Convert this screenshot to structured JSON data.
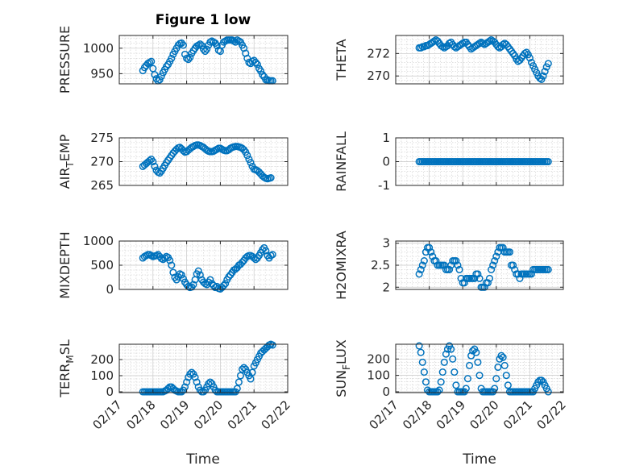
{
  "title": "Figure 1 low",
  "colors": {
    "marker": "#0072BD",
    "axis": "#262626",
    "grid": "#c8c8c8"
  },
  "x_tick_labels": [
    "02/17",
    "02/18",
    "02/19",
    "02/20",
    "02/21",
    "02/22"
  ],
  "x_label": "Time",
  "chart_data": [
    {
      "type": "scatter",
      "id": "pressure",
      "ylabel": "PRESSURE",
      "ylim": [
        930,
        1025
      ],
      "yticks": [
        950,
        1000
      ],
      "grid": true,
      "x": [
        17.7,
        17.75,
        17.8,
        17.85,
        17.9,
        17.95,
        18.0,
        18.05,
        18.1,
        18.15,
        18.2,
        18.25,
        18.3,
        18.35,
        18.4,
        18.45,
        18.5,
        18.55,
        18.6,
        18.65,
        18.7,
        18.75,
        18.8,
        18.85,
        18.9,
        18.95,
        19.0,
        19.05,
        19.1,
        19.15,
        19.2,
        19.25,
        19.3,
        19.35,
        19.4,
        19.45,
        19.5,
        19.55,
        19.6,
        19.65,
        19.7,
        19.75,
        19.8,
        19.85,
        19.9,
        19.95,
        20.0,
        20.05,
        20.1,
        20.15,
        20.2,
        20.25,
        20.3,
        20.35,
        20.4,
        20.45,
        20.5,
        20.55,
        20.6,
        20.65,
        20.7,
        20.75,
        20.8,
        20.85,
        20.9,
        20.95,
        21.0,
        21.05,
        21.1,
        21.15,
        21.2,
        21.25,
        21.3,
        21.35,
        21.4,
        21.45,
        21.5,
        21.55
      ],
      "y": [
        956,
        962,
        966,
        970,
        972,
        974,
        960,
        948,
        940,
        936,
        938,
        945,
        952,
        958,
        964,
        968,
        974,
        980,
        988,
        994,
        1000,
        1006,
        1009,
        1010,
        1006,
        988,
        980,
        978,
        982,
        990,
        995,
        1000,
        1004,
        1006,
        1008,
        1005,
        998,
        994,
        998,
        1006,
        1012,
        1014,
        1012,
        1010,
        1005,
        996,
        994,
        1006,
        1012,
        1014,
        1016,
        1016,
        1016,
        1016,
        1014,
        1012,
        1016,
        1014,
        1012,
        1006,
        1000,
        990,
        980,
        972,
        970,
        974,
        976,
        972,
        968,
        960,
        955,
        948,
        944,
        938,
        938,
        936,
        936,
        936
      ]
    },
    {
      "type": "scatter",
      "id": "theta",
      "ylabel": "THETA",
      "ylim": [
        269.3,
        273.6
      ],
      "yticks": [
        270,
        272
      ],
      "grid": true,
      "x": [
        17.7,
        17.75,
        17.8,
        17.85,
        17.9,
        17.95,
        18.0,
        18.05,
        18.1,
        18.15,
        18.2,
        18.25,
        18.3,
        18.35,
        18.4,
        18.45,
        18.5,
        18.55,
        18.6,
        18.65,
        18.7,
        18.75,
        18.8,
        18.85,
        18.9,
        18.95,
        19.0,
        19.05,
        19.1,
        19.15,
        19.2,
        19.25,
        19.3,
        19.35,
        19.4,
        19.45,
        19.5,
        19.55,
        19.6,
        19.65,
        19.7,
        19.75,
        19.8,
        19.85,
        19.9,
        19.95,
        20.0,
        20.05,
        20.1,
        20.15,
        20.2,
        20.25,
        20.3,
        20.35,
        20.4,
        20.45,
        20.5,
        20.55,
        20.6,
        20.65,
        20.7,
        20.75,
        20.8,
        20.85,
        20.9,
        20.95,
        21.0,
        21.05,
        21.1,
        21.15,
        21.2,
        21.25,
        21.3,
        21.35,
        21.4,
        21.45,
        21.5,
        21.55
      ],
      "y": [
        272.5,
        272.5,
        272.6,
        272.6,
        272.7,
        272.7,
        272.8,
        272.9,
        273.0,
        273.1,
        273.2,
        273.1,
        272.9,
        272.7,
        272.6,
        272.5,
        272.6,
        272.7,
        272.9,
        273.0,
        272.8,
        272.6,
        272.5,
        272.6,
        272.7,
        272.8,
        272.9,
        273.0,
        273.0,
        272.8,
        272.6,
        272.4,
        272.5,
        272.6,
        272.7,
        272.8,
        272.9,
        273.0,
        272.9,
        272.8,
        272.9,
        273.0,
        273.1,
        273.2,
        273.1,
        273.0,
        272.8,
        272.6,
        272.5,
        272.6,
        272.8,
        272.9,
        272.8,
        272.6,
        272.4,
        272.2,
        272.0,
        271.8,
        271.5,
        271.3,
        271.4,
        271.6,
        271.8,
        272.0,
        272.1,
        271.9,
        271.6,
        271.2,
        270.9,
        270.6,
        270.3,
        270.0,
        269.8,
        269.7,
        270.0,
        270.4,
        270.8,
        271.1
      ]
    },
    {
      "type": "scatter",
      "id": "air_temp",
      "ylabel_main": "AIR",
      "ylabel_sub": "T",
      "ylabel_rest": "EMP",
      "ylim": [
        265,
        275
      ],
      "yticks": [
        265,
        270,
        275
      ],
      "grid": true,
      "x": [
        17.7,
        17.75,
        17.8,
        17.85,
        17.9,
        17.95,
        18.0,
        18.05,
        18.1,
        18.15,
        18.2,
        18.25,
        18.3,
        18.35,
        18.4,
        18.45,
        18.5,
        18.55,
        18.6,
        18.65,
        18.7,
        18.75,
        18.8,
        18.85,
        18.9,
        18.95,
        19.0,
        19.05,
        19.1,
        19.15,
        19.2,
        19.25,
        19.3,
        19.35,
        19.4,
        19.45,
        19.5,
        19.55,
        19.6,
        19.65,
        19.7,
        19.75,
        19.8,
        19.85,
        19.9,
        19.95,
        20.0,
        20.05,
        20.1,
        20.15,
        20.2,
        20.25,
        20.3,
        20.35,
        20.4,
        20.45,
        20.5,
        20.55,
        20.6,
        20.65,
        20.7,
        20.75,
        20.8,
        20.85,
        20.9,
        20.95,
        21.0,
        21.05,
        21.1,
        21.15,
        21.2,
        21.25,
        21.3,
        21.35,
        21.4,
        21.45,
        21.5
      ],
      "y": [
        269.0,
        269.3,
        269.6,
        269.9,
        270.2,
        270.5,
        270.0,
        269.0,
        268.2,
        267.8,
        267.6,
        268.0,
        268.6,
        269.2,
        269.8,
        270.3,
        270.8,
        271.3,
        271.8,
        272.2,
        272.6,
        272.9,
        273.0,
        272.7,
        272.3,
        272.0,
        272.1,
        272.4,
        272.7,
        273.0,
        273.2,
        273.4,
        273.5,
        273.5,
        273.4,
        273.2,
        273.0,
        272.7,
        272.4,
        272.2,
        272.1,
        272.1,
        272.2,
        272.4,
        272.6,
        272.8,
        272.8,
        272.6,
        272.4,
        272.3,
        272.3,
        272.5,
        272.8,
        273.0,
        273.1,
        273.2,
        273.2,
        273.1,
        273.0,
        272.8,
        272.5,
        272.0,
        271.3,
        270.5,
        269.8,
        269.0,
        268.4,
        268.3,
        268.1,
        267.8,
        267.4,
        267.0,
        266.7,
        266.5,
        266.4,
        266.5,
        266.6
      ]
    },
    {
      "type": "scatter",
      "id": "rainfall",
      "ylabel": "RAINFALL",
      "ylim": [
        -1,
        1
      ],
      "yticks": [
        -1,
        0,
        1
      ],
      "grid": true,
      "x_start": 17.7,
      "x_end": 21.55,
      "constant_y": 0
    },
    {
      "type": "scatter",
      "id": "mixdepth",
      "ylabel": "MIXDEPTH",
      "ylim": [
        0,
        1000
      ],
      "yticks": [
        0,
        500,
        1000
      ],
      "grid": true,
      "x": [
        17.7,
        17.75,
        17.8,
        17.85,
        17.9,
        17.95,
        18.0,
        18.05,
        18.1,
        18.15,
        18.2,
        18.25,
        18.3,
        18.35,
        18.4,
        18.45,
        18.5,
        18.55,
        18.6,
        18.65,
        18.7,
        18.75,
        18.8,
        18.85,
        18.9,
        18.95,
        19.0,
        19.05,
        19.1,
        19.15,
        19.2,
        19.25,
        19.3,
        19.35,
        19.4,
        19.45,
        19.5,
        19.55,
        19.6,
        19.65,
        19.7,
        19.75,
        19.8,
        19.85,
        19.9,
        19.95,
        20.0,
        20.05,
        20.1,
        20.15,
        20.2,
        20.25,
        20.3,
        20.35,
        20.4,
        20.45,
        20.5,
        20.55,
        20.6,
        20.65,
        20.7,
        20.75,
        20.8,
        20.85,
        20.9,
        20.95,
        21.0,
        21.05,
        21.1,
        21.15,
        21.2,
        21.25,
        21.3,
        21.35,
        21.4,
        21.45,
        21.5,
        21.55
      ],
      "y": [
        650,
        680,
        700,
        720,
        720,
        700,
        680,
        690,
        700,
        720,
        680,
        640,
        620,
        650,
        680,
        660,
        600,
        500,
        350,
        250,
        200,
        260,
        320,
        300,
        220,
        150,
        100,
        60,
        40,
        50,
        100,
        200,
        320,
        380,
        300,
        200,
        150,
        120,
        100,
        150,
        200,
        120,
        80,
        40,
        60,
        20,
        10,
        40,
        80,
        120,
        200,
        260,
        300,
        350,
        400,
        420,
        450,
        500,
        520,
        560,
        600,
        650,
        680,
        700,
        700,
        680,
        650,
        620,
        650,
        700,
        760,
        820,
        860,
        800,
        700,
        650,
        700,
        720
      ]
    },
    {
      "type": "scatter",
      "id": "h2omixra",
      "ylabel": "H2OMIXRA",
      "ylim": [
        1.95,
        3.05
      ],
      "yticks": [
        2,
        2.5,
        3
      ],
      "grid": true,
      "x": [
        17.7,
        17.75,
        17.8,
        17.85,
        17.9,
        17.95,
        18.0,
        18.05,
        18.1,
        18.15,
        18.2,
        18.25,
        18.3,
        18.35,
        18.4,
        18.45,
        18.5,
        18.55,
        18.6,
        18.65,
        18.7,
        18.75,
        18.8,
        18.85,
        18.9,
        18.95,
        19.0,
        19.05,
        19.1,
        19.15,
        19.2,
        19.25,
        19.3,
        19.35,
        19.4,
        19.45,
        19.5,
        19.55,
        19.6,
        19.65,
        19.7,
        19.75,
        19.8,
        19.85,
        19.9,
        19.95,
        20.0,
        20.05,
        20.1,
        20.15,
        20.2,
        20.25,
        20.3,
        20.35,
        20.4,
        20.45,
        20.5,
        20.55,
        20.6,
        20.65,
        20.7,
        20.75,
        20.8,
        20.85,
        20.9,
        20.95,
        21.0,
        21.05,
        21.1,
        21.15,
        21.2,
        21.25,
        21.3,
        21.35,
        21.4,
        21.45,
        21.5,
        21.55
      ],
      "y": [
        2.3,
        2.4,
        2.5,
        2.6,
        2.8,
        2.9,
        2.9,
        2.8,
        2.7,
        2.6,
        2.6,
        2.5,
        2.5,
        2.5,
        2.5,
        2.5,
        2.4,
        2.4,
        2.4,
        2.5,
        2.6,
        2.6,
        2.6,
        2.5,
        2.4,
        2.2,
        2.1,
        2.1,
        2.2,
        2.2,
        2.2,
        2.2,
        2.2,
        2.2,
        2.3,
        2.3,
        2.2,
        2.0,
        2.0,
        2.0,
        2.1,
        2.1,
        2.2,
        2.4,
        2.5,
        2.6,
        2.7,
        2.8,
        2.9,
        2.9,
        2.9,
        2.8,
        2.8,
        2.8,
        2.8,
        2.5,
        2.5,
        2.4,
        2.3,
        2.3,
        2.2,
        2.3,
        2.3,
        2.3,
        2.3,
        2.3,
        2.3,
        2.3,
        2.4,
        2.4,
        2.4,
        2.4,
        2.4,
        2.4,
        2.4,
        2.4,
        2.4,
        2.4
      ]
    },
    {
      "type": "scatter",
      "id": "terr_msl",
      "ylabel_main": "TERR",
      "ylabel_sub": "M",
      "ylabel_rest": "SL",
      "ylim": [
        -5,
        295
      ],
      "yticks": [
        0,
        100,
        200
      ],
      "grid": true,
      "x": [
        17.7,
        17.75,
        17.8,
        17.85,
        17.9,
        17.95,
        18.0,
        18.05,
        18.1,
        18.15,
        18.2,
        18.25,
        18.3,
        18.35,
        18.4,
        18.45,
        18.5,
        18.55,
        18.6,
        18.65,
        18.7,
        18.75,
        18.8,
        18.85,
        18.9,
        18.95,
        19.0,
        19.05,
        19.1,
        19.15,
        19.2,
        19.25,
        19.3,
        19.35,
        19.4,
        19.45,
        19.5,
        19.55,
        19.6,
        19.65,
        19.7,
        19.75,
        19.8,
        19.85,
        19.9,
        19.95,
        20.0,
        20.05,
        20.1,
        20.15,
        20.2,
        20.25,
        20.3,
        20.35,
        20.4,
        20.45,
        20.5,
        20.55,
        20.6,
        20.65,
        20.7,
        20.75,
        20.8,
        20.85,
        20.9,
        20.95,
        21.0,
        21.05,
        21.1,
        21.15,
        21.2,
        21.25,
        21.3,
        21.35,
        21.4,
        21.45,
        21.5,
        21.55
      ],
      "y": [
        0,
        0,
        0,
        0,
        0,
        0,
        0,
        0,
        0,
        0,
        0,
        0,
        0,
        5,
        10,
        20,
        30,
        30,
        20,
        10,
        5,
        0,
        0,
        0,
        10,
        30,
        60,
        90,
        110,
        120,
        110,
        90,
        60,
        30,
        10,
        0,
        0,
        10,
        30,
        50,
        60,
        50,
        30,
        10,
        0,
        0,
        0,
        0,
        0,
        0,
        0,
        0,
        0,
        0,
        0,
        0,
        20,
        60,
        100,
        140,
        150,
        140,
        120,
        100,
        80,
        120,
        160,
        180,
        200,
        220,
        240,
        250,
        260,
        270,
        280,
        290,
        295,
        290
      ]
    },
    {
      "type": "scatter",
      "id": "sun_flux",
      "ylabel_main": "SUN",
      "ylabel_sub": "F",
      "ylabel_rest": "LUX",
      "ylim": [
        -5,
        290
      ],
      "yticks": [
        0,
        100,
        200
      ],
      "grid": true,
      "x": [
        17.7,
        17.75,
        17.8,
        17.85,
        17.9,
        17.95,
        18.0,
        18.05,
        18.1,
        18.15,
        18.2,
        18.25,
        18.3,
        18.35,
        18.4,
        18.45,
        18.5,
        18.55,
        18.6,
        18.65,
        18.7,
        18.75,
        18.8,
        18.85,
        18.9,
        18.95,
        19.0,
        19.05,
        19.1,
        19.15,
        19.2,
        19.25,
        19.3,
        19.35,
        19.4,
        19.45,
        19.5,
        19.55,
        19.6,
        19.65,
        19.7,
        19.75,
        19.8,
        19.85,
        19.9,
        19.95,
        20.0,
        20.05,
        20.1,
        20.15,
        20.2,
        20.25,
        20.3,
        20.35,
        20.4,
        20.45,
        20.5,
        20.55,
        20.6,
        20.65,
        20.7,
        20.75,
        20.8,
        20.85,
        20.9,
        20.95,
        21.0,
        21.05,
        21.1,
        21.15,
        21.2,
        21.25,
        21.3,
        21.35,
        21.4,
        21.45,
        21.5,
        21.55
      ],
      "y": [
        280,
        240,
        180,
        120,
        60,
        10,
        0,
        0,
        0,
        0,
        0,
        0,
        10,
        60,
        120,
        180,
        230,
        260,
        280,
        260,
        200,
        120,
        40,
        0,
        0,
        0,
        0,
        0,
        20,
        80,
        160,
        220,
        250,
        260,
        240,
        180,
        100,
        20,
        0,
        0,
        0,
        0,
        0,
        0,
        0,
        20,
        80,
        150,
        200,
        220,
        210,
        160,
        100,
        40,
        0,
        0,
        0,
        0,
        0,
        0,
        0,
        0,
        0,
        0,
        0,
        0,
        0,
        0,
        0,
        20,
        40,
        60,
        70,
        70,
        60,
        40,
        20,
        0
      ]
    }
  ]
}
